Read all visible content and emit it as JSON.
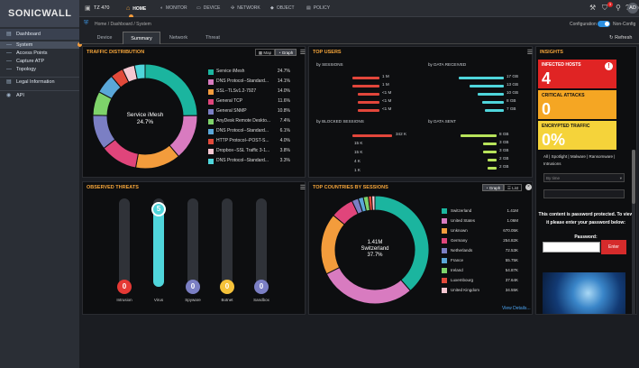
{
  "brand": "SONICWALL",
  "device": "TZ 470",
  "topnav": [
    "HOME",
    "MONITOR",
    "DEVICE",
    "NETWORK",
    "OBJECT",
    "POLICY"
  ],
  "user": "AD",
  "notif_count": "3",
  "breadcrumb": "Home / Dashboard / System",
  "config_label": "Configuration",
  "nonconfig_label": "Non-Config",
  "refresh_label": "Refresh",
  "sidebar": {
    "section1": "Dashboard",
    "items": [
      "System",
      "Access Points",
      "Capture ATP",
      "Topology"
    ],
    "section2": "Legal Information",
    "section3": "API"
  },
  "tabs": [
    "Device",
    "Summary",
    "Network",
    "Threat"
  ],
  "traffic": {
    "title": "TRAFFIC DISTRIBUTION",
    "map_label": "Map",
    "graph_label": "Graph",
    "center_name": "Service iMesh",
    "center_pct": "24.7%",
    "items": [
      {
        "name": "Service iMesh",
        "pct": "24.7%",
        "color": "#1bb59f"
      },
      {
        "name": "DNS Protocol--Standard...",
        "pct": "14.1%",
        "color": "#d87bc0"
      },
      {
        "name": "SSL--TLSv1.2-7927",
        "pct": "14.0%",
        "color": "#f39c3c"
      },
      {
        "name": "General TCP",
        "pct": "11.6%",
        "color": "#e0457b"
      },
      {
        "name": "General SNMP",
        "pct": "10.8%",
        "color": "#7b7fc4"
      },
      {
        "name": "AnyDesk Remote Deskto...",
        "pct": "7.4%",
        "color": "#7ed36a"
      },
      {
        "name": "DNS Protocol--Standard...",
        "pct": "6.1%",
        "color": "#5aa7d8"
      },
      {
        "name": "HTTP Protocol--POST-S...",
        "pct": "4.0%",
        "color": "#e24a3b"
      },
      {
        "name": "Dropbox--SSL Traffic 3-1...",
        "pct": "3.8%",
        "color": "#f5c7d1"
      },
      {
        "name": "DNS Protocol--Standard...",
        "pct": "3.3%",
        "color": "#4fd5db"
      }
    ]
  },
  "top_users": {
    "title": "TOP USERS",
    "sessions": "by SESSIONS",
    "received": "by DATA RECEIVED",
    "blocked": "by BLOCKED SESSIONS",
    "sent": "by DATA SENT",
    "sessions_vals": [
      "1 M",
      "1 M",
      "<1 M",
      "<1 M",
      "<1 M"
    ],
    "received_vals": [
      "17 GB",
      "13 GB",
      "10 GB",
      "8 GB",
      "7 GB"
    ],
    "blocked_vals": [
      "342 K",
      "15 K",
      "15 K",
      "4 K",
      "1 K"
    ],
    "sent_vals": [
      "8 GB",
      "3 GB",
      "3 GB",
      "2 GB",
      "2 GB"
    ]
  },
  "threats": {
    "title": "OBSERVED THREATS",
    "items": [
      {
        "name": "Intrusion",
        "value": "0",
        "color": "#e53935"
      },
      {
        "name": "Virus",
        "value": "5",
        "color": "#4fd5db"
      },
      {
        "name": "Spyware",
        "value": "0",
        "color": "#7b7fc4"
      },
      {
        "name": "Botnet",
        "value": "0",
        "color": "#f5c23a"
      },
      {
        "name": "Sandbox",
        "value": "0",
        "color": "#7b7fc4"
      }
    ]
  },
  "countries": {
    "title": "TOP COUNTRIES BY SESSIONS",
    "graph_label": "Graph",
    "list_label": "List",
    "center_val": "1.41M",
    "center_name": "Switzerland",
    "center_pct": "37.7%",
    "view_details": "View Details...",
    "items": [
      {
        "name": "Switzerland",
        "val": "1.41M",
        "color": "#1bb59f"
      },
      {
        "name": "United States",
        "val": "1.06M",
        "color": "#d87bc0"
      },
      {
        "name": "Unknown",
        "val": "670.05K",
        "color": "#f39c3c"
      },
      {
        "name": "Germany",
        "val": "254.82K",
        "color": "#e0457b"
      },
      {
        "name": "Netherlands",
        "val": "72.53K",
        "color": "#7b7fc4"
      },
      {
        "name": "France",
        "val": "55.75K",
        "color": "#5aa7d8"
      },
      {
        "name": "Ireland",
        "val": "54.87K",
        "color": "#7ed36a"
      },
      {
        "name": "Luxembourg",
        "val": "37.64K",
        "color": "#e24a3b"
      },
      {
        "name": "United Kingdom",
        "val": "34.55K",
        "color": "#f5c7d1"
      }
    ]
  },
  "insights": {
    "title": "INSIGHTS",
    "cards": [
      {
        "title": "INFECTED HOSTS",
        "value": "4",
        "color": "#e02424"
      },
      {
        "title": "CRITICAL ATTACKS",
        "value": "0",
        "color": "#f5a623"
      },
      {
        "title": "ENCRYPTED TRAFFIC",
        "value": "0%",
        "color": "#f5d33a"
      }
    ],
    "filters": "All | Spotlight | Malware | Ransomware | Intrusions",
    "select": "By time",
    "protected_msg": "This content is password protected. To view it please enter your password below:",
    "password_label": "Password:",
    "enter_label": "Enter"
  }
}
